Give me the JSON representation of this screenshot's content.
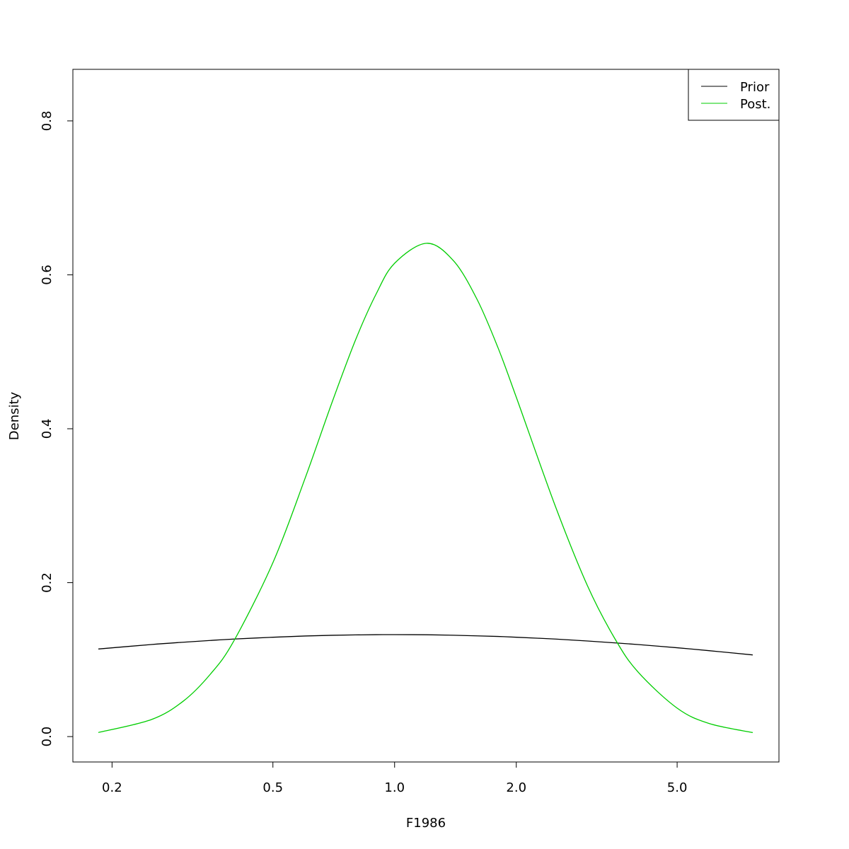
{
  "chart_data": {
    "type": "line",
    "title": "",
    "xlabel": "F1986",
    "ylabel": "Density",
    "x_scale": "log",
    "xlim": [
      0.16,
      8.93
    ],
    "ylim": [
      -0.033,
      0.867
    ],
    "x_ticks": [
      "0.2",
      "0.5",
      "1.0",
      "2.0",
      "5.0"
    ],
    "x_tick_values": [
      0.2,
      0.5,
      1.0,
      2.0,
      5.0
    ],
    "y_ticks": [
      "0.0",
      "0.2",
      "0.4",
      "0.6",
      "0.8"
    ],
    "y_tick_values": [
      0,
      0.2,
      0.4,
      0.6,
      0.8
    ],
    "grid": false,
    "legend_position": "top-right",
    "x": [
      0.185,
      0.25,
      0.3,
      0.35,
      0.4,
      0.5,
      0.6,
      0.7,
      0.8,
      0.9,
      1.0,
      1.2,
      1.4,
      1.6,
      1.8,
      2.0,
      2.5,
      3.0,
      3.5,
      4.0,
      5.0,
      6.0,
      7.69
    ],
    "series": [
      {
        "name": "Prior",
        "color": "#000000",
        "values": [
          0.1138,
          0.1196,
          0.1226,
          0.1249,
          0.1267,
          0.1291,
          0.1307,
          0.1316,
          0.1321,
          0.1324,
          0.1325,
          0.1323,
          0.1317,
          0.1309,
          0.1301,
          0.1291,
          0.1267,
          0.1242,
          0.1218,
          0.1196,
          0.1154,
          0.1116,
          0.1061
        ]
      },
      {
        "name": "Post.",
        "color": "#00cd00",
        "values": [
          0.0053,
          0.022,
          0.046,
          0.081,
          0.124,
          0.226,
          0.335,
          0.434,
          0.515,
          0.575,
          0.615,
          0.641,
          0.618,
          0.568,
          0.506,
          0.441,
          0.299,
          0.196,
          0.128,
          0.084,
          0.037,
          0.017,
          0.0052
        ]
      }
    ]
  }
}
